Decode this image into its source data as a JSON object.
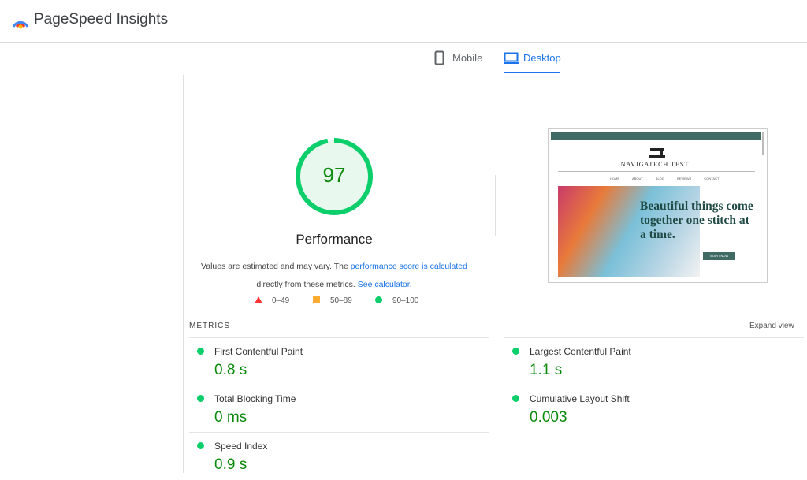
{
  "header": {
    "title": "PageSpeed Insights"
  },
  "tabs": [
    "Mobile",
    "Desktop"
  ],
  "score": 97,
  "category": "Performance",
  "description": {
    "text1": "Values are estimated and may vary. The ",
    "link1": "performance score is calculated",
    "text2": "directly from these metrics. ",
    "link2": "See calculator."
  },
  "legend": [
    "0–49",
    "50–89",
    "90–100"
  ],
  "metrics_heading": "METRICS",
  "expand": "Expand view",
  "metrics": [
    {
      "label": "First Contentful Paint",
      "value": "0.8 s"
    },
    {
      "label": "Largest Contentful Paint",
      "value": "1.1 s"
    },
    {
      "label": "Total Blocking Time",
      "value": "0 ms"
    },
    {
      "label": "Cumulative Layout Shift",
      "value": "0.003"
    },
    {
      "label": "Speed Index",
      "value": "0.9 s"
    }
  ],
  "thumbnail": {
    "site": "NAVIGATECH TEST",
    "nav": [
      "HOME",
      "ABOUT",
      "BLOG",
      "REVIEWS",
      "CONTACT"
    ],
    "headline": "Beautiful things come together one stitch at a time.",
    "button": "START NOW"
  }
}
